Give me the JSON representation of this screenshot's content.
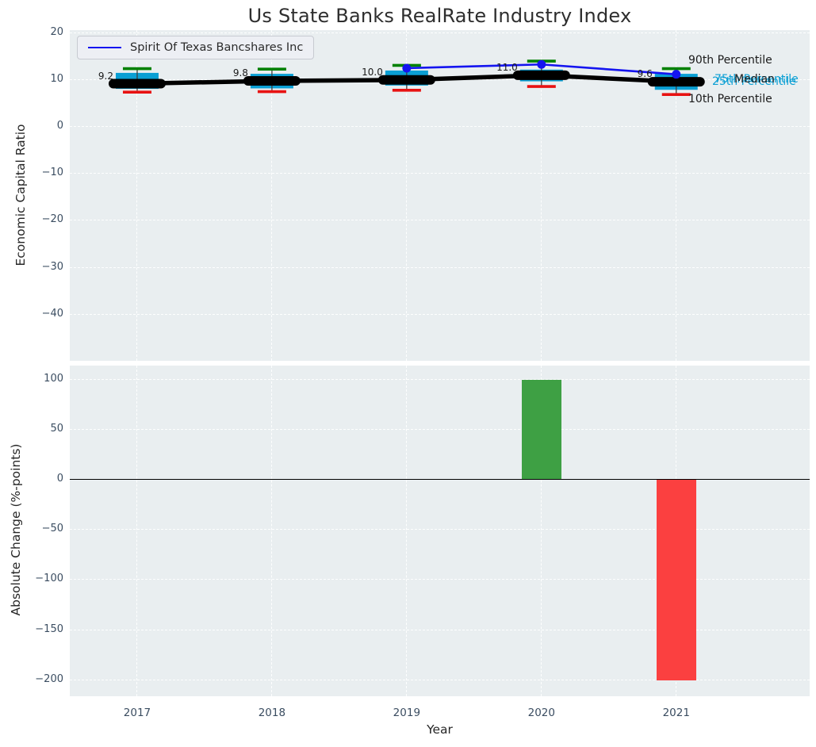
{
  "title": "Us State Banks RealRate Industry Index",
  "colors": {
    "plot_bg": "#e9eef0",
    "grid": "#ffffff",
    "box_fill": "#0a9fd4",
    "p90_cap": "#008000",
    "p10_cap": "#e81212",
    "median_line": "#000000",
    "company_line": "#1414f0",
    "bar_positive": "#3ea044",
    "bar_negative": "#fb4040",
    "tick_text": "#3b4d61",
    "text": "#262626"
  },
  "chart_data": [
    {
      "type": "boxplot+line",
      "title": "Us State Banks RealRate Industry Index",
      "ylabel": "Economic Capital Ratio",
      "categories": [
        "2017",
        "2018",
        "2019",
        "2020",
        "2021"
      ],
      "yticks": [
        20,
        10,
        0,
        -10,
        -20,
        -30,
        -40
      ],
      "ylim": [
        -49.8,
        20.6
      ],
      "grid": true,
      "legend_position": "upper-left",
      "series": [
        {
          "name": "Spirit Of Texas Bancshares Inc",
          "type": "line-with-dots",
          "values": [
            null,
            null,
            12.5,
            13.3,
            11.2
          ]
        },
        {
          "name": "Median",
          "type": "thick-line",
          "values": [
            9.2,
            9.8,
            10.0,
            11.0,
            9.6
          ]
        }
      ],
      "boxes": {
        "p90": [
          12.4,
          12.3,
          13.1,
          14.0,
          12.4
        ],
        "p75": [
          11.5,
          11.3,
          12.0,
          12.2,
          11.3
        ],
        "p25": [
          8.1,
          8.2,
          8.8,
          9.7,
          7.9
        ],
        "p10": [
          7.4,
          7.5,
          7.8,
          8.6,
          6.9
        ]
      },
      "median_value_labels": [
        "9.2",
        "9.8",
        "10.0",
        "11.0",
        "9.6"
      ],
      "side_labels": {
        "p90": "90th Percentile",
        "p75": "75th Percentile",
        "median": "Median",
        "p25": "25th Percentile",
        "p10": "10th Percentile"
      }
    },
    {
      "type": "bar",
      "xlabel": "Year",
      "ylabel": "Absolute Change (%-points)",
      "categories": [
        "2017",
        "2018",
        "2019",
        "2020",
        "2021"
      ],
      "values": [
        0,
        0,
        0,
        100,
        -200
      ],
      "yticks": [
        100,
        50,
        0,
        -50,
        -100,
        -150,
        -200
      ],
      "ylim": [
        -216,
        114
      ],
      "grid": true,
      "zero_line": true
    }
  ]
}
